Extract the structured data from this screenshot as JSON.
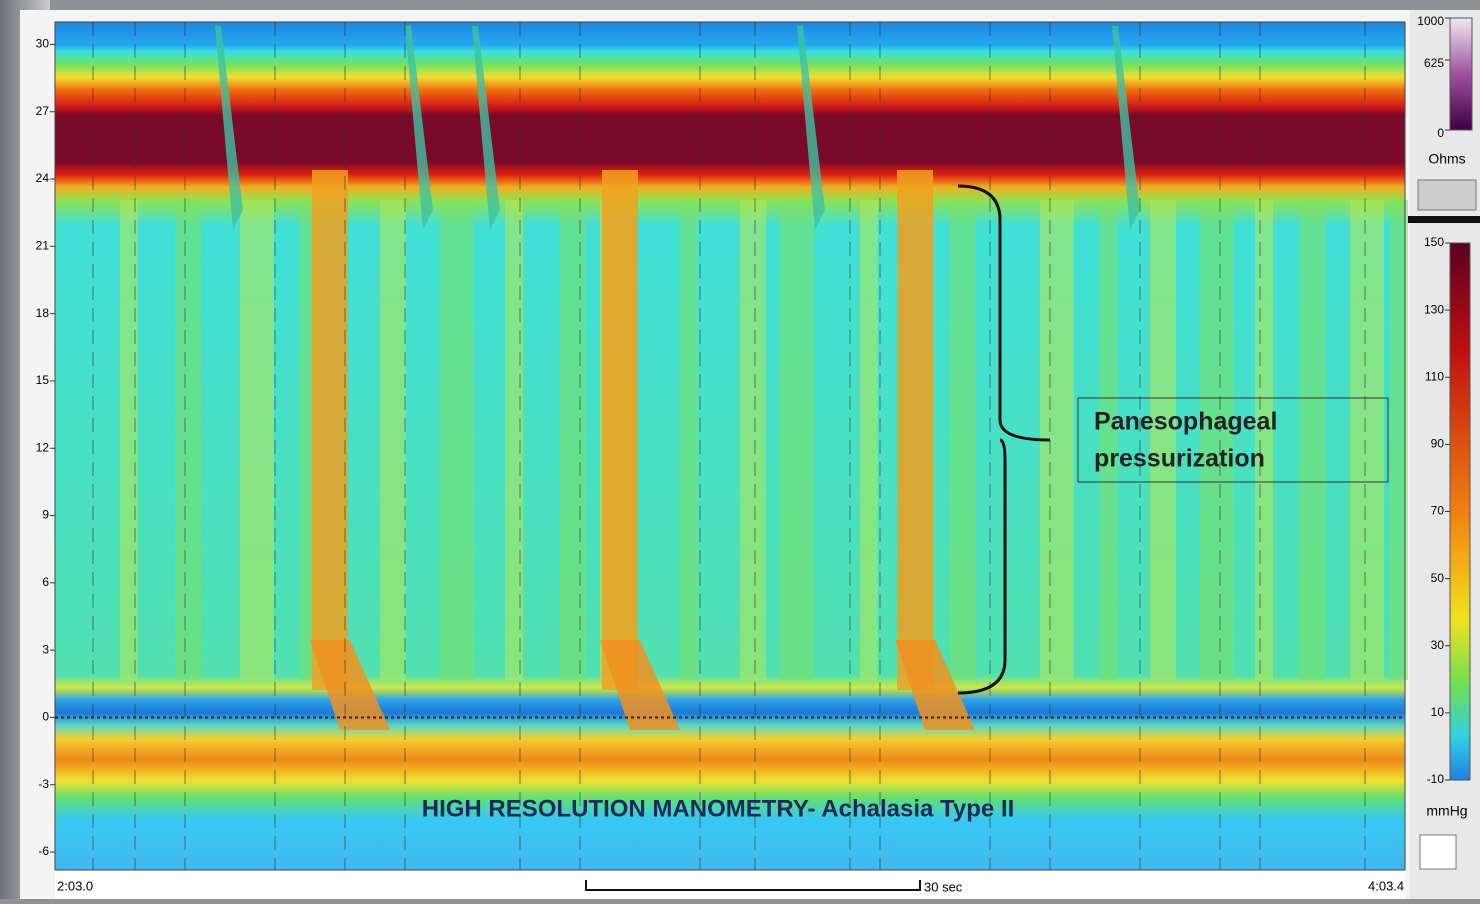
{
  "chart_data": {
    "type": "heatmap",
    "title": "HIGH RESOLUTION MANOMETRY- Achalasia Type II",
    "annotation": [
      "Panesophageal",
      "pressurization"
    ],
    "ylim": [
      -6.8,
      31
    ],
    "yticks": [
      30,
      27,
      24,
      21,
      18,
      15,
      12,
      9,
      6,
      3,
      0,
      -3,
      -6
    ],
    "x_start": "2:03.0",
    "x_end": "4:03.4",
    "scale_bar": "30 sec",
    "colorbar": {
      "label": "mmHg",
      "ylim": [
        -10,
        150
      ],
      "yticks": [
        150,
        130,
        110,
        90,
        70,
        50,
        30,
        10,
        -10
      ]
    },
    "impedance_bar": {
      "label": "Ohms",
      "ylim": [
        0,
        1000
      ],
      "yticks": [
        1000,
        625,
        0
      ]
    },
    "input_value": "0"
  }
}
